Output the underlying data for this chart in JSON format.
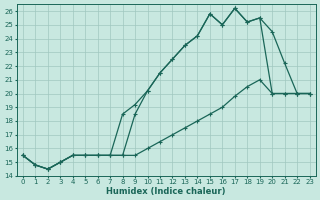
{
  "xlabel": "Humidex (Indice chaleur)",
  "ylabel": "",
  "xlim": [
    -0.5,
    23.5
  ],
  "ylim": [
    14,
    26.5
  ],
  "yticks": [
    14,
    15,
    16,
    17,
    18,
    19,
    20,
    21,
    22,
    23,
    24,
    25,
    26
  ],
  "xticks": [
    0,
    1,
    2,
    3,
    4,
    5,
    6,
    7,
    8,
    9,
    10,
    11,
    12,
    13,
    14,
    15,
    16,
    17,
    18,
    19,
    20,
    21,
    22,
    23
  ],
  "bg_color": "#c8e8e0",
  "grid_color": "#a0c8c0",
  "line_color": "#1a6658",
  "line1_y": [
    15.5,
    14.8,
    14.5,
    15.0,
    15.5,
    15.5,
    15.5,
    15.5,
    15.5,
    18.5,
    20.2,
    21.5,
    22.5,
    23.5,
    24.2,
    25.8,
    25.0,
    26.2,
    25.2,
    25.5,
    24.5,
    22.2,
    20.0,
    20.0
  ],
  "line2_y": [
    15.5,
    14.8,
    14.5,
    15.0,
    15.5,
    15.5,
    15.5,
    15.5,
    18.5,
    19.2,
    20.2,
    21.5,
    22.5,
    23.5,
    24.2,
    25.8,
    25.0,
    26.2,
    25.2,
    25.5,
    20.0,
    20.0,
    20.0,
    20.0
  ],
  "line3_y": [
    15.5,
    14.8,
    14.5,
    15.0,
    15.5,
    15.5,
    15.5,
    15.5,
    15.5,
    15.5,
    16.0,
    16.5,
    17.0,
    17.5,
    18.0,
    18.5,
    19.0,
    19.8,
    20.5,
    21.0,
    20.0,
    20.0,
    20.0,
    20.0
  ]
}
